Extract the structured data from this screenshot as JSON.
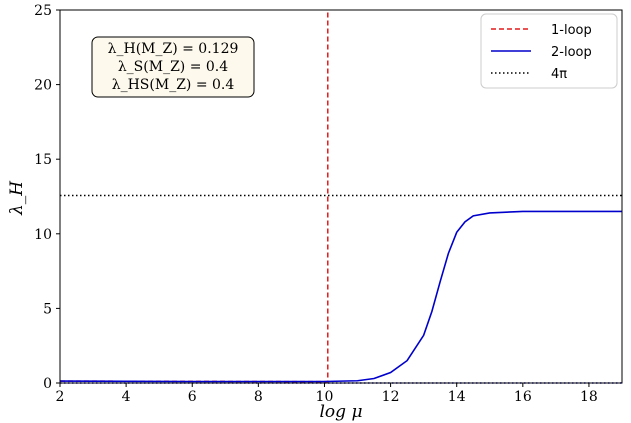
{
  "chart_data": {
    "type": "line",
    "xlabel": "log μ",
    "ylabel": "λ_H",
    "xlim": [
      2,
      19
    ],
    "ylim": [
      0,
      25
    ],
    "xticks": [
      2,
      4,
      6,
      8,
      10,
      12,
      14,
      16,
      18
    ],
    "yticks": [
      0,
      5,
      10,
      15,
      20,
      25
    ],
    "grid": false,
    "legend_position": "top-right",
    "legend": [
      {
        "label": "1-loop",
        "color": "#e41a1c",
        "style": "dashed"
      },
      {
        "label": "2-loop",
        "color": "#0000cc",
        "style": "solid"
      },
      {
        "label": "4π",
        "color": "#000000",
        "style": "dotted"
      }
    ],
    "annotation": {
      "lines": [
        "λ_H(M_Z) = 0.129",
        "λ_S(M_Z) = 0.4",
        "λ_HS(M_Z) = 0.4"
      ]
    },
    "series": [
      {
        "name": "1-loop",
        "color": "#e41a1c",
        "style": "dashed",
        "x": [
          2,
          4,
          6,
          8,
          10,
          10.1,
          10.1
        ],
        "y": [
          0.129,
          0.12,
          0.11,
          0.1,
          0.09,
          0.09,
          25
        ]
      },
      {
        "name": "2-loop",
        "color": "#0000cc",
        "style": "solid",
        "x": [
          2,
          4,
          6,
          8,
          10,
          11,
          11.5,
          12,
          12.5,
          13,
          13.25,
          13.5,
          13.75,
          14,
          14.25,
          14.5,
          15,
          15.5,
          16,
          17,
          18,
          19
        ],
        "y": [
          0.129,
          0.11,
          0.1,
          0.1,
          0.1,
          0.15,
          0.3,
          0.7,
          1.5,
          3.2,
          4.8,
          6.8,
          8.7,
          10.1,
          10.8,
          11.2,
          11.4,
          11.45,
          11.5,
          11.5,
          11.5,
          11.5
        ]
      },
      {
        "name": "4π",
        "color": "#000000",
        "style": "dotted",
        "x": [
          2,
          19
        ],
        "y": [
          12.566,
          12.566
        ]
      },
      {
        "name": "",
        "color": "#0000cc",
        "style": "dotted",
        "x": [
          2,
          19
        ],
        "y": [
          0,
          0
        ]
      }
    ]
  }
}
